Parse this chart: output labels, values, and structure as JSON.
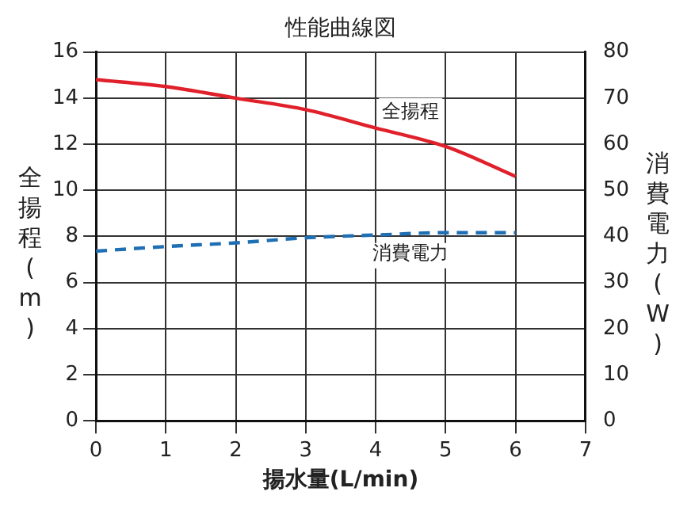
{
  "chart_data": {
    "type": "line",
    "title": "性能曲線図",
    "xlabel": "揚水量(L/min)",
    "ylabel": "全揚程(m)",
    "y2label": "消費電力(W)",
    "x": [
      0,
      1,
      2,
      3,
      4,
      5,
      6
    ],
    "series": [
      {
        "name": "全揚程",
        "color": "#e0202a",
        "values": [
          14.8,
          14.5,
          14.0,
          13.5,
          12.7,
          11.9,
          10.6
        ]
      },
      {
        "name": "消費電力",
        "color": "#1f6fb5",
        "values": [
          36.8,
          37.8,
          38.6,
          39.7,
          40.3,
          40.8,
          40.8
        ],
        "axis": "y2",
        "line_style": "dashed"
      }
    ],
    "xlim": [
      0,
      7
    ],
    "xticks": [
      0,
      1,
      2,
      3,
      4,
      5,
      6,
      7
    ],
    "ylim": [
      0,
      16
    ],
    "yticks": [
      0,
      2,
      4,
      6,
      8,
      10,
      12,
      14,
      16
    ],
    "y2lim": [
      0,
      80
    ],
    "y2ticks": [
      0,
      10,
      20,
      30,
      40,
      50,
      60,
      70,
      80
    ],
    "grid": true,
    "legend": false,
    "marker": "none"
  }
}
